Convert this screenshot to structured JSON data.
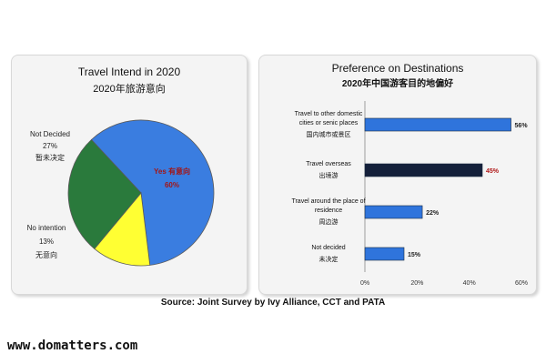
{
  "chart_data": [
    {
      "type": "pie",
      "title": "Travel Intend in 2020",
      "subtitle": "2020年旅游意向",
      "slices": [
        {
          "label": "Yes 有意向",
          "value": 60,
          "value_label": "60%",
          "color": "#3a7de0",
          "label_color": "#a31515"
        },
        {
          "label": "No intention",
          "value": 13,
          "value_label": "13%",
          "sublabel": "无意向",
          "color": "#ffff33",
          "label_color": "#222222"
        },
        {
          "label": "Not Decided",
          "value": 27,
          "value_label": "27%",
          "sublabel": "暂未决定",
          "color": "#2a7a3c",
          "label_color": "#222222"
        }
      ]
    },
    {
      "type": "bar",
      "orientation": "horizontal",
      "title": "Preference on Destinations",
      "subtitle": "2020年中国游客目的地偏好",
      "xlim": [
        0,
        60
      ],
      "ticks": [
        "0%",
        "20%",
        "40%",
        "60%"
      ],
      "bars": [
        {
          "label_lines": [
            "Travel to other domestic",
            "cities or senic places"
          ],
          "sublabel": "国内城市或景区",
          "value": 56,
          "value_label": "56%",
          "color": "#2f74dc",
          "value_color": "#222222"
        },
        {
          "label_lines": [
            "Travel overseas"
          ],
          "sublabel": "出境游",
          "value": 45,
          "value_label": "45%",
          "color": "#14203a",
          "value_color": "#b01818"
        },
        {
          "label_lines": [
            "Travel around the place of",
            "residence"
          ],
          "sublabel": "周边游",
          "value": 22,
          "value_label": "22%",
          "color": "#2f74dc",
          "value_color": "#222222"
        },
        {
          "label_lines": [
            "Not decided"
          ],
          "sublabel": "未决定",
          "value": 15,
          "value_label": "15%",
          "color": "#2f74dc",
          "value_color": "#222222"
        }
      ]
    }
  ],
  "footer": {
    "source": "Source: Joint Survey by Ivy Alliance, CCT and PATA",
    "watermark": "www.domatters.com"
  }
}
